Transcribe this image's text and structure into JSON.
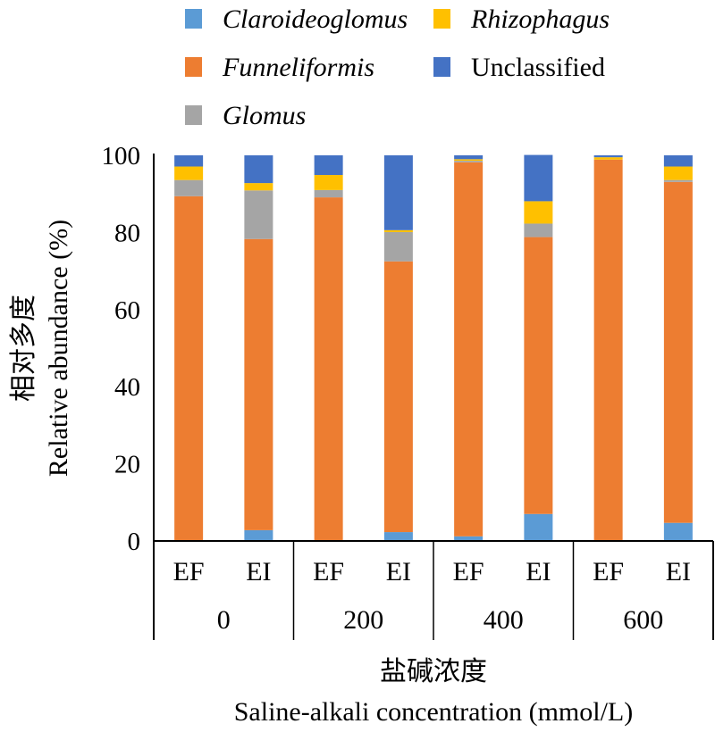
{
  "chart_data": {
    "type": "bar",
    "stacked": true,
    "title": "",
    "ylabel_cn": "相对多度",
    "ylabel": "Relative abundance (%)",
    "xlabel_cn": "盐碱浓度",
    "xlabel": "Saline-alkali concentration (mmol/L)",
    "ylim": [
      0,
      100
    ],
    "yticks": [
      "0",
      "20",
      "40",
      "60",
      "80",
      "100"
    ],
    "groups": [
      "0",
      "200",
      "400",
      "600"
    ],
    "categories": [
      "EF",
      "EI",
      "EF",
      "EI",
      "EF",
      "EI",
      "EF",
      "EI"
    ],
    "legend_position": "top",
    "series": [
      {
        "name": "Claroideoglomus",
        "italic": true,
        "color": "#5B9BD5",
        "values": [
          0,
          2.8,
          0,
          2.3,
          1.2,
          7.0,
          0,
          4.7
        ]
      },
      {
        "name": "Funneliformis",
        "italic": true,
        "color": "#ED7D31",
        "values": [
          89.4,
          75.5,
          89.1,
          70.2,
          97.0,
          71.8,
          98.9,
          88.4
        ]
      },
      {
        "name": "Glomus",
        "italic": true,
        "color": "#A5A5A5",
        "values": [
          4.2,
          12.6,
          1.9,
          7.6,
          0.4,
          3.5,
          0,
          0.5
        ]
      },
      {
        "name": "Rhizophagus",
        "italic": true,
        "color": "#FFC000",
        "values": [
          3.5,
          1.9,
          3.9,
          0.5,
          0.4,
          5.8,
          0.6,
          3.5
        ]
      },
      {
        "name": "Unclassified",
        "italic": false,
        "color": "#4472C4",
        "values": [
          2.9,
          7.2,
          5.1,
          19.4,
          1.0,
          12.0,
          0.5,
          2.9
        ]
      }
    ]
  }
}
